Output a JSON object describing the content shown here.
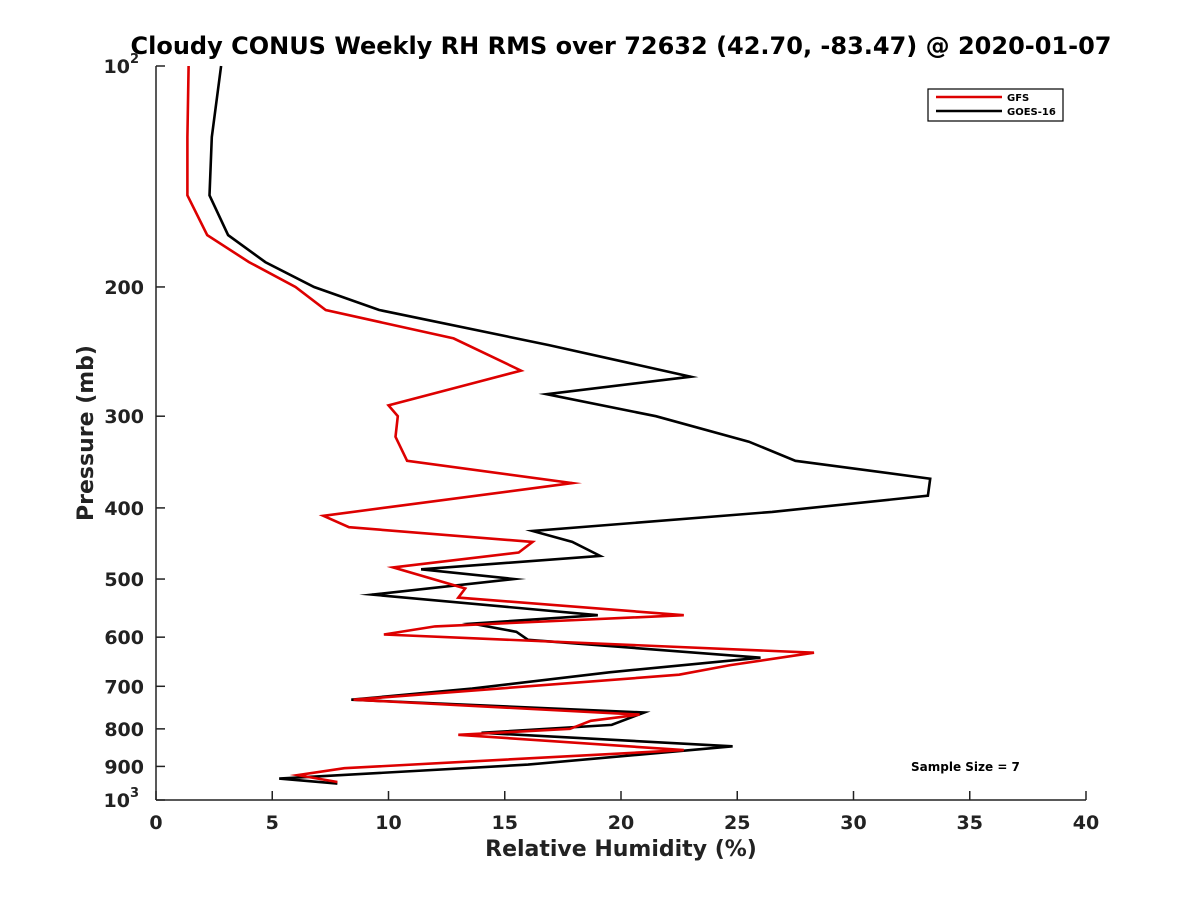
{
  "chart_data": {
    "type": "line",
    "title": "Cloudy CONUS Weekly RH RMS over 72632 (42.70, -83.47) @ 2020-01-07",
    "xlabel": "Relative Humidity (%)",
    "ylabel": "Pressure (mb)",
    "xlim": [
      0,
      40
    ],
    "ylim": [
      100,
      1000
    ],
    "y_scale": "log",
    "y_reversed": true,
    "grid": false,
    "legend_position": "top-right",
    "x_ticks": [
      "0",
      "5",
      "10",
      "15",
      "20",
      "25",
      "30",
      "35",
      "40"
    ],
    "x_tick_values": [
      0,
      5,
      10,
      15,
      20,
      25,
      30,
      35,
      40
    ],
    "y_ticks": [
      {
        "value": 100,
        "base": "10",
        "exp": "2"
      },
      {
        "value": 200,
        "label": "200"
      },
      {
        "value": 300,
        "label": "300"
      },
      {
        "value": 400,
        "label": "400"
      },
      {
        "value": 500,
        "label": "500"
      },
      {
        "value": 600,
        "label": "600"
      },
      {
        "value": 700,
        "label": "700"
      },
      {
        "value": 800,
        "label": "800"
      },
      {
        "value": 900,
        "label": "900"
      },
      {
        "value": 1000,
        "base": "10",
        "exp": "3"
      }
    ],
    "annotation": "Sample Size = 7",
    "series": [
      {
        "name": "GFS",
        "color": "#dd0000",
        "points": [
          [
            1.4,
            100
          ],
          [
            1.35,
            125
          ],
          [
            1.35,
            150
          ],
          [
            2.2,
            170
          ],
          [
            4.0,
            185
          ],
          [
            6.0,
            200
          ],
          [
            7.3,
            215
          ],
          [
            12.8,
            235
          ],
          [
            15.7,
            260
          ],
          [
            10.0,
            290
          ],
          [
            10.4,
            300
          ],
          [
            10.3,
            320
          ],
          [
            10.8,
            345
          ],
          [
            17.9,
            370
          ],
          [
            7.2,
            410
          ],
          [
            8.3,
            425
          ],
          [
            16.2,
            445
          ],
          [
            15.6,
            460
          ],
          [
            10.2,
            482
          ],
          [
            13.3,
            515
          ],
          [
            13.0,
            530
          ],
          [
            22.7,
            560
          ],
          [
            12.0,
            580
          ],
          [
            9.8,
            595
          ],
          [
            28.3,
            630
          ],
          [
            24.7,
            655
          ],
          [
            22.5,
            675
          ],
          [
            8.5,
            730
          ],
          [
            20.8,
            765
          ],
          [
            18.7,
            780
          ],
          [
            17.8,
            800
          ],
          [
            13.0,
            815
          ],
          [
            22.7,
            855
          ],
          [
            8.1,
            905
          ],
          [
            6.1,
            925
          ],
          [
            7.8,
            945
          ]
        ]
      },
      {
        "name": "GOES-16",
        "color": "#000000",
        "points": [
          [
            2.8,
            100
          ],
          [
            2.4,
            125
          ],
          [
            2.3,
            150
          ],
          [
            3.1,
            170
          ],
          [
            4.7,
            185
          ],
          [
            6.8,
            200
          ],
          [
            9.6,
            215
          ],
          [
            16.9,
            240
          ],
          [
            23.0,
            265
          ],
          [
            16.8,
            280
          ],
          [
            21.5,
            300
          ],
          [
            25.5,
            325
          ],
          [
            27.5,
            345
          ],
          [
            33.3,
            365
          ],
          [
            33.2,
            385
          ],
          [
            26.5,
            405
          ],
          [
            16.2,
            430
          ],
          [
            17.9,
            445
          ],
          [
            19.1,
            465
          ],
          [
            11.4,
            485
          ],
          [
            15.4,
            500
          ],
          [
            9.3,
            525
          ],
          [
            19.0,
            560
          ],
          [
            13.6,
            575
          ],
          [
            15.5,
            590
          ],
          [
            16.0,
            605
          ],
          [
            26.0,
            640
          ],
          [
            19.5,
            670
          ],
          [
            13.6,
            705
          ],
          [
            8.4,
            730
          ],
          [
            21.0,
            760
          ],
          [
            19.6,
            790
          ],
          [
            14.0,
            810
          ],
          [
            24.8,
            845
          ],
          [
            16.0,
            895
          ],
          [
            5.3,
            935
          ],
          [
            7.8,
            950
          ]
        ]
      }
    ]
  }
}
